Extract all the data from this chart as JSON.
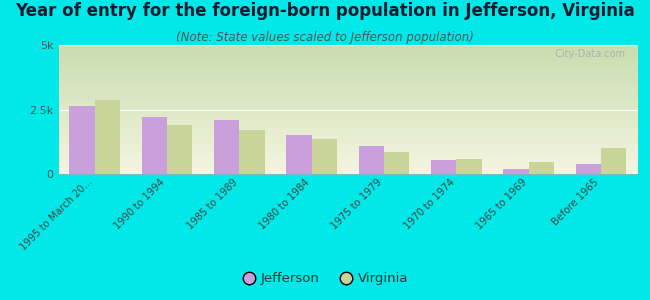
{
  "title": "Year of entry for the foreign-born population in Jefferson, Virginia",
  "subtitle": "(Note: State values scaled to Jefferson population)",
  "categories": [
    "1995 to March 20...",
    "1990 to 1994",
    "1985 to 1989",
    "1980 to 1984",
    "1975 to 1979",
    "1970 to 1974",
    "1965 to 1969",
    "Before 1965"
  ],
  "jefferson_values": [
    2650,
    2200,
    2100,
    1500,
    1100,
    530,
    190,
    380
  ],
  "virginia_values": [
    2850,
    1900,
    1700,
    1350,
    850,
    580,
    480,
    1000
  ],
  "jefferson_color": "#c9a0dc",
  "virginia_color": "#c8d49a",
  "background_color": "#00e8e8",
  "plot_bg_gradient_top": "#c8ddb0",
  "plot_bg_gradient_bottom": "#f5f5e0",
  "ylim": [
    0,
    5000
  ],
  "ytick_labels": [
    "0",
    "2.5k",
    "5k"
  ],
  "ytick_values": [
    0,
    2500,
    5000
  ],
  "bar_width": 0.35,
  "legend_labels": [
    "Jefferson",
    "Virginia"
  ],
  "watermark": "  City-Data.com",
  "title_fontsize": 12,
  "subtitle_fontsize": 8.5
}
